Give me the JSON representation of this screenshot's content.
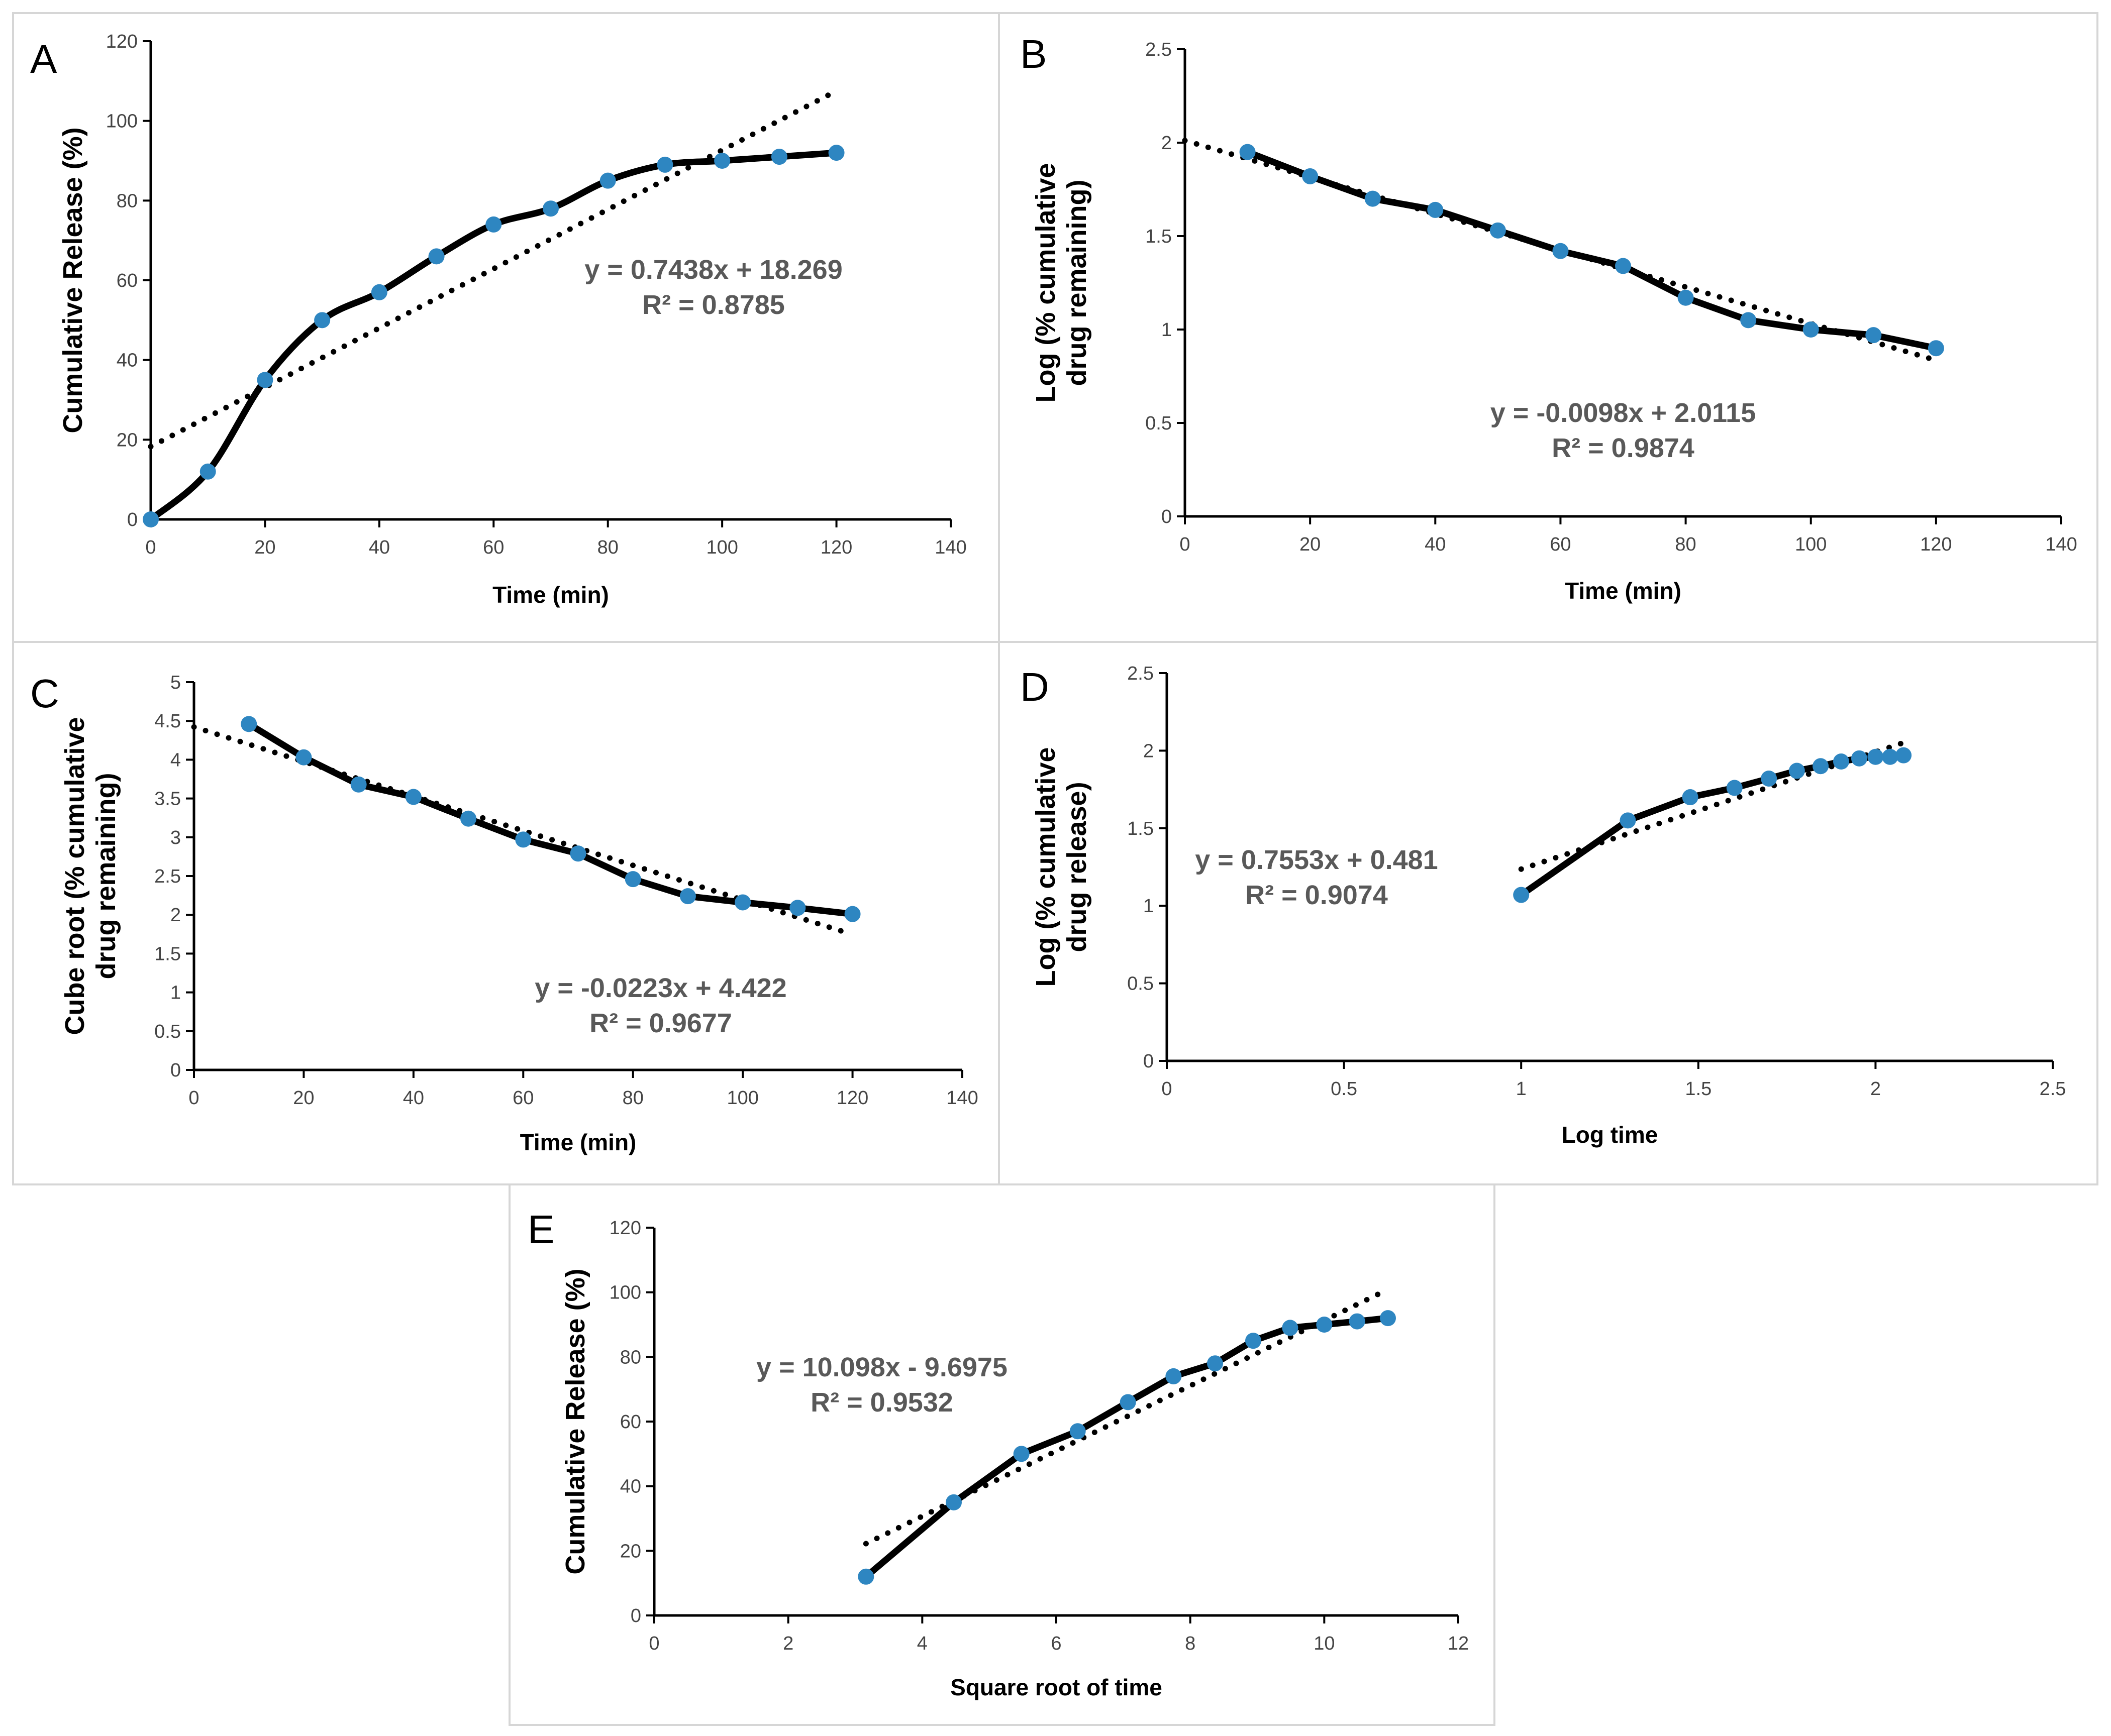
{
  "colors": {
    "marker": "#2E86C1",
    "line": "#000000",
    "trend": "#000000",
    "frame": "#d6d6d6",
    "equation": "#595959"
  },
  "chart_data": [
    {
      "type": "line",
      "panel": "A",
      "xlabel": "Time (min)",
      "ylabel": [
        "Cumulative Release (%)"
      ],
      "xlim": [
        0,
        140
      ],
      "xticks": [
        0,
        20,
        40,
        60,
        80,
        100,
        120,
        140
      ],
      "xtick_labels": [
        "0",
        "20",
        "40",
        "60",
        "80",
        "100",
        "120",
        "140"
      ],
      "ylim": [
        0,
        120
      ],
      "yticks": [
        0,
        20,
        40,
        60,
        80,
        100,
        120
      ],
      "ytick_labels": [
        "0",
        "20",
        "40",
        "60",
        "80",
        "100",
        "120"
      ],
      "x": [
        0,
        10,
        20,
        30,
        40,
        50,
        60,
        70,
        80,
        90,
        100,
        110,
        120
      ],
      "y": [
        0,
        12,
        35,
        50,
        57,
        66,
        74,
        78,
        85,
        89,
        90,
        91,
        92
      ],
      "smooth": true,
      "trendline": {
        "slope": 0.7438,
        "intercept": 18.269,
        "x_range": [
          0,
          120
        ]
      },
      "equation": "y = 0.7438x + 18.269",
      "r2": "R² = 0.8785"
    },
    {
      "type": "line",
      "panel": "B",
      "xlabel": "Time (min)",
      "ylabel": [
        "Log (% cumulative",
        "drug remaining)"
      ],
      "xlim": [
        0,
        140
      ],
      "xticks": [
        0,
        20,
        40,
        60,
        80,
        100,
        120,
        140
      ],
      "xtick_labels": [
        "0",
        "20",
        "40",
        "60",
        "80",
        "100",
        "120",
        "140"
      ],
      "ylim": [
        0,
        2.5
      ],
      "yticks": [
        0,
        0.5,
        1,
        1.5,
        2,
        2.5
      ],
      "ytick_labels": [
        "0",
        "0.5",
        "1",
        "1.5",
        "2",
        "2.5"
      ],
      "x": [
        10,
        20,
        30,
        40,
        50,
        60,
        70,
        80,
        90,
        100,
        110,
        120
      ],
      "y": [
        1.95,
        1.82,
        1.7,
        1.64,
        1.53,
        1.42,
        1.34,
        1.17,
        1.05,
        1.0,
        0.97,
        0.9
      ],
      "smooth": false,
      "trendline": {
        "slope": -0.0098,
        "intercept": 2.0115,
        "x_range": [
          0,
          120
        ]
      },
      "equation": "y = -0.0098x + 2.0115",
      "r2": "R² = 0.9874"
    },
    {
      "type": "line",
      "panel": "C",
      "xlabel": "Time (min)",
      "ylabel": [
        "Cube root (% cumulative",
        "drug remaining)"
      ],
      "xlim": [
        0,
        140
      ],
      "xticks": [
        0,
        20,
        40,
        60,
        80,
        100,
        120,
        140
      ],
      "xtick_labels": [
        "0",
        "20",
        "40",
        "60",
        "80",
        "100",
        "120",
        "140"
      ],
      "ylim": [
        0,
        5
      ],
      "yticks": [
        0,
        0.5,
        1,
        1.5,
        2,
        2.5,
        3,
        3.5,
        4,
        4.5,
        5
      ],
      "ytick_labels": [
        "0",
        "0.5",
        "1",
        "1.5",
        "2",
        "2.5",
        "3",
        "3.5",
        "4",
        "4.5",
        "5"
      ],
      "x": [
        10,
        20,
        30,
        40,
        50,
        60,
        70,
        80,
        90,
        100,
        110,
        120
      ],
      "y": [
        4.46,
        4.03,
        3.68,
        3.52,
        3.24,
        2.97,
        2.79,
        2.46,
        2.24,
        2.16,
        2.09,
        2.01
      ],
      "smooth": false,
      "trendline": {
        "slope": -0.0223,
        "intercept": 4.422,
        "x_range": [
          0,
          118
        ]
      },
      "equation": "y = -0.0223x + 4.422",
      "r2": "R² = 0.9677"
    },
    {
      "type": "line",
      "panel": "D",
      "xlabel": "Log time",
      "ylabel": [
        "Log (% cumulative",
        "drug release)"
      ],
      "xlim": [
        0,
        2.5
      ],
      "xticks": [
        0,
        0.5,
        1,
        1.5,
        2,
        2.5
      ],
      "xtick_labels": [
        "0",
        "0.5",
        "1",
        "1.5",
        "2",
        "2.5"
      ],
      "ylim": [
        0,
        2.5
      ],
      "yticks": [
        0,
        0.5,
        1,
        1.5,
        2,
        2.5
      ],
      "ytick_labels": [
        "0",
        "0.5",
        "1",
        "1.5",
        "2",
        "2.5"
      ],
      "x": [
        1.0,
        1.301,
        1.477,
        1.602,
        1.699,
        1.778,
        1.845,
        1.903,
        1.954,
        2.0,
        2.041,
        2.079
      ],
      "y": [
        1.07,
        1.55,
        1.7,
        1.76,
        1.82,
        1.87,
        1.9,
        1.93,
        1.95,
        1.96,
        1.96,
        1.97
      ],
      "smooth": false,
      "trendline": {
        "slope": 0.7553,
        "intercept": 0.481,
        "x_range": [
          1.0,
          2.079
        ]
      },
      "equation": "y = 0.7553x + 0.481",
      "r2": "R² = 0.9074"
    },
    {
      "type": "line",
      "panel": "E",
      "xlabel": "Square root of time",
      "ylabel": [
        "Cumulative Release (%)"
      ],
      "xlim": [
        0,
        12
      ],
      "xticks": [
        0,
        2,
        4,
        6,
        8,
        10,
        12
      ],
      "xtick_labels": [
        "0",
        "2",
        "4",
        "6",
        "8",
        "10",
        "12"
      ],
      "ylim": [
        0,
        120
      ],
      "yticks": [
        0,
        20,
        40,
        60,
        80,
        100,
        120
      ],
      "ytick_labels": [
        "0",
        "20",
        "40",
        "60",
        "80",
        "100",
        "120"
      ],
      "x": [
        3.16,
        4.47,
        5.48,
        6.32,
        7.07,
        7.75,
        8.37,
        8.94,
        9.49,
        10.0,
        10.49,
        10.95
      ],
      "y": [
        12,
        35,
        50,
        57,
        66,
        74,
        78,
        85,
        89,
        90,
        91,
        92
      ],
      "smooth": false,
      "trendline": {
        "slope": 10.098,
        "intercept": -9.6975,
        "x_range": [
          3.16,
          10.95
        ]
      },
      "equation": "y = 10.098x - 9.6975",
      "r2": "R² = 0.9532"
    }
  ]
}
